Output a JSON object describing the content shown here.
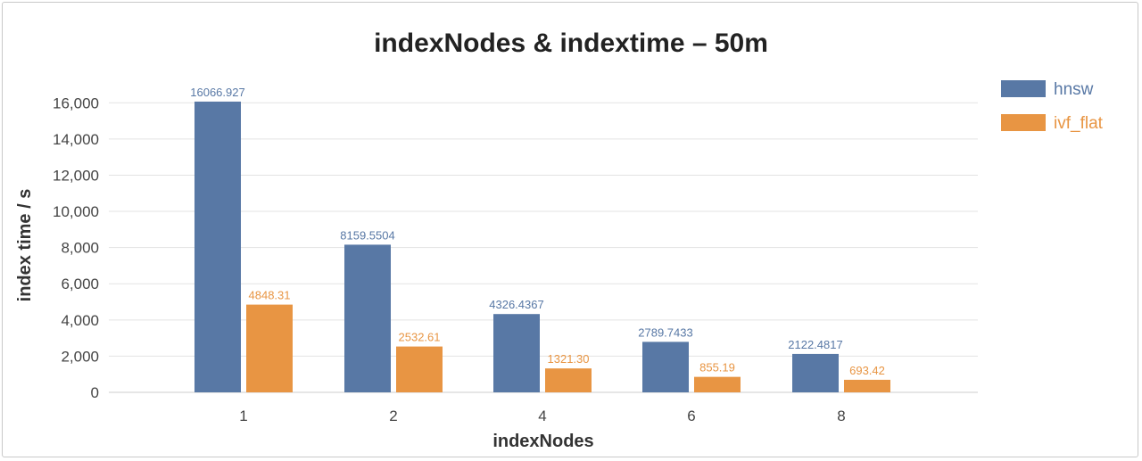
{
  "chart_data": {
    "type": "bar",
    "title": "indexNodes & indextime – 50m",
    "xlabel": "indexNodes",
    "ylabel": "index time / s",
    "categories": [
      "1",
      "2",
      "4",
      "6",
      "8"
    ],
    "ylim": [
      0,
      17000
    ],
    "yticks": [
      0,
      2000,
      4000,
      6000,
      8000,
      10000,
      12000,
      14000,
      16000
    ],
    "ytick_labels": [
      "0",
      "2,000",
      "4,000",
      "6,000",
      "8,000",
      "10,000",
      "12,000",
      "14,000",
      "16,000"
    ],
    "grid": true,
    "legend_position": "right-top",
    "series": [
      {
        "name": "hnsw",
        "color": "#5878a5",
        "values": [
          16066.927,
          8159.5504,
          4326.4367,
          2789.7433,
          2122.4817
        ],
        "labels": [
          "16066.927",
          "8159.5504",
          "4326.4367",
          "2789.7433",
          "2122.4817"
        ]
      },
      {
        "name": "ivf_flat",
        "color": "#e89543",
        "values": [
          4848.31,
          2532.61,
          1321.3,
          855.19,
          693.42
        ],
        "labels": [
          "4848.31",
          "2532.61",
          "1321.30",
          "855.19",
          "693.42"
        ]
      }
    ]
  }
}
